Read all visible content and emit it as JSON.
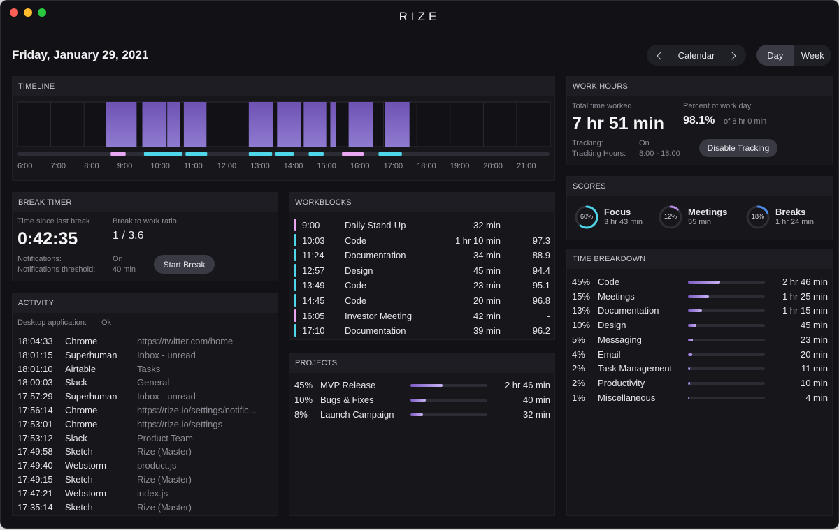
{
  "app": {
    "title": "RIZE"
  },
  "header": {
    "date": "Friday, January 29, 2021",
    "calendar_label": "Calendar",
    "view_day": "Day",
    "view_week": "Week"
  },
  "timeline": {
    "title": "TIMELINE",
    "hours": [
      "6:00",
      "7:00",
      "8:00",
      "9:00",
      "10:00",
      "11:00",
      "12:00",
      "13:00",
      "14:00",
      "15:00",
      "16:00",
      "17:00",
      "18:00",
      "19:00",
      "20:00",
      "21:00"
    ]
  },
  "break_timer": {
    "title": "BREAK TIMER",
    "since_label": "Time since last break",
    "since_value": "0:42:35",
    "ratio_label": "Break to work ratio",
    "ratio_value": "1 / 3.6",
    "notifications_label": "Notifications:",
    "notifications_value": "On",
    "threshold_label": "Notifications threshold:",
    "threshold_value": "40 min",
    "start_button": "Start Break"
  },
  "activity": {
    "title": "ACTIVITY",
    "desktop_label": "Desktop application:",
    "desktop_value": "Ok",
    "rows": [
      {
        "time": "18:04:33",
        "app": "Chrome",
        "detail": "https://twitter.com/home"
      },
      {
        "time": "18:01:15",
        "app": "Superhuman",
        "detail": "Inbox - unread"
      },
      {
        "time": "18:01:10",
        "app": "Airtable",
        "detail": "Tasks"
      },
      {
        "time": "18:00:03",
        "app": "Slack",
        "detail": "General"
      },
      {
        "time": "17:57:29",
        "app": "Superhuman",
        "detail": "Inbox - unread"
      },
      {
        "time": "17:56:14",
        "app": "Chrome",
        "detail": "https://rize.io/settings/notific..."
      },
      {
        "time": "17:53:01",
        "app": "Chrome",
        "detail": "https://rize.io/settings"
      },
      {
        "time": "17:53:12",
        "app": "Slack",
        "detail": "Product Team"
      },
      {
        "time": "17:49:58",
        "app": "Sketch",
        "detail": "Rize (Master)"
      },
      {
        "time": "17:49:40",
        "app": "Webstorm",
        "detail": "product.js"
      },
      {
        "time": "17:49:15",
        "app": "Sketch",
        "detail": "Rize (Master)"
      },
      {
        "time": "17:47:21",
        "app": "Webstorm",
        "detail": "index.js"
      },
      {
        "time": "17:35:14",
        "app": "Sketch",
        "detail": "Rize (Master)"
      }
    ]
  },
  "workblocks": {
    "title": "WORKBLOCKS",
    "rows": [
      {
        "time": "9:00",
        "name": "Daily Stand-Up",
        "duration": "32 min",
        "score": "-",
        "color": "#e9a6f2"
      },
      {
        "time": "10:03",
        "name": "Code",
        "duration": "1 hr 10 min",
        "score": "97.3",
        "color": "#4fd6ea"
      },
      {
        "time": "11:24",
        "name": "Documentation",
        "duration": "34 min",
        "score": "88.9",
        "color": "#4fd6ea"
      },
      {
        "time": "12:57",
        "name": "Design",
        "duration": "45 min",
        "score": "94.4",
        "color": "#4fd6ea"
      },
      {
        "time": "13:49",
        "name": "Code",
        "duration": "23 min",
        "score": "95.1",
        "color": "#4fd6ea"
      },
      {
        "time": "14:45",
        "name": "Code",
        "duration": "20 min",
        "score": "96.8",
        "color": "#4fd6ea"
      },
      {
        "time": "16:05",
        "name": "Investor Meeting",
        "duration": "42 min",
        "score": "-",
        "color": "#e9a6f2"
      },
      {
        "time": "17:10",
        "name": "Documentation",
        "duration": "39 min",
        "score": "96.2",
        "color": "#4fd6ea"
      }
    ]
  },
  "projects": {
    "title": "PROJECTS",
    "rows": [
      {
        "pct": "45%",
        "name": "MVP Release",
        "duration": "2 hr 46 min",
        "fill": 0.42
      },
      {
        "pct": "10%",
        "name": "Bugs & Fixes",
        "duration": "40 min",
        "fill": 0.2
      },
      {
        "pct": "8%",
        "name": "Launch Campaign",
        "duration": "32 min",
        "fill": 0.16
      }
    ]
  },
  "work_hours": {
    "title": "WORK HOURS",
    "total_label": "Total time worked",
    "total_value": "7 hr 51 min",
    "percent_label": "Percent of work day",
    "percent_value": "98.1%",
    "percent_of": "of 8 hr 0 min",
    "tracking_label": "Tracking:",
    "tracking_value": "On",
    "tracking_hours_label": "Tracking Hours:",
    "tracking_hours_value": "8:00 - 18:00",
    "disable_button": "Disable Tracking"
  },
  "scores": {
    "title": "SCORES",
    "items": [
      {
        "name": "Focus",
        "pct": "60%",
        "time": "3 hr 43 min",
        "value": 0.6,
        "color": "#4fd6ea"
      },
      {
        "name": "Meetings",
        "pct": "12%",
        "time": "55 min",
        "value": 0.12,
        "color": "#b98ee8"
      },
      {
        "name": "Breaks",
        "pct": "18%",
        "time": "1 hr 24 min",
        "value": 0.18,
        "color": "#4f8be8"
      }
    ]
  },
  "time_breakdown": {
    "title": "TIME BREAKDOWN",
    "rows": [
      {
        "pct": "45%",
        "name": "Code",
        "duration": "2 hr 46 min",
        "fill": 0.42
      },
      {
        "pct": "15%",
        "name": "Meetings",
        "duration": "1 hr 25 min",
        "fill": 0.27
      },
      {
        "pct": "13%",
        "name": "Documentation",
        "duration": "1 hr 15 min",
        "fill": 0.18
      },
      {
        "pct": "10%",
        "name": "Design",
        "duration": "45 min",
        "fill": 0.11
      },
      {
        "pct": "5%",
        "name": "Messaging",
        "duration": "23 min",
        "fill": 0.06
      },
      {
        "pct": "4%",
        "name": "Email",
        "duration": "20 min",
        "fill": 0.05
      },
      {
        "pct": "2%",
        "name": "Task Management",
        "duration": "11 min",
        "fill": 0.03
      },
      {
        "pct": "2%",
        "name": "Productivity",
        "duration": "10 min",
        "fill": 0.03
      },
      {
        "pct": "1%",
        "name": "Miscellaneous",
        "duration": "4 min",
        "fill": 0.02
      }
    ]
  }
}
